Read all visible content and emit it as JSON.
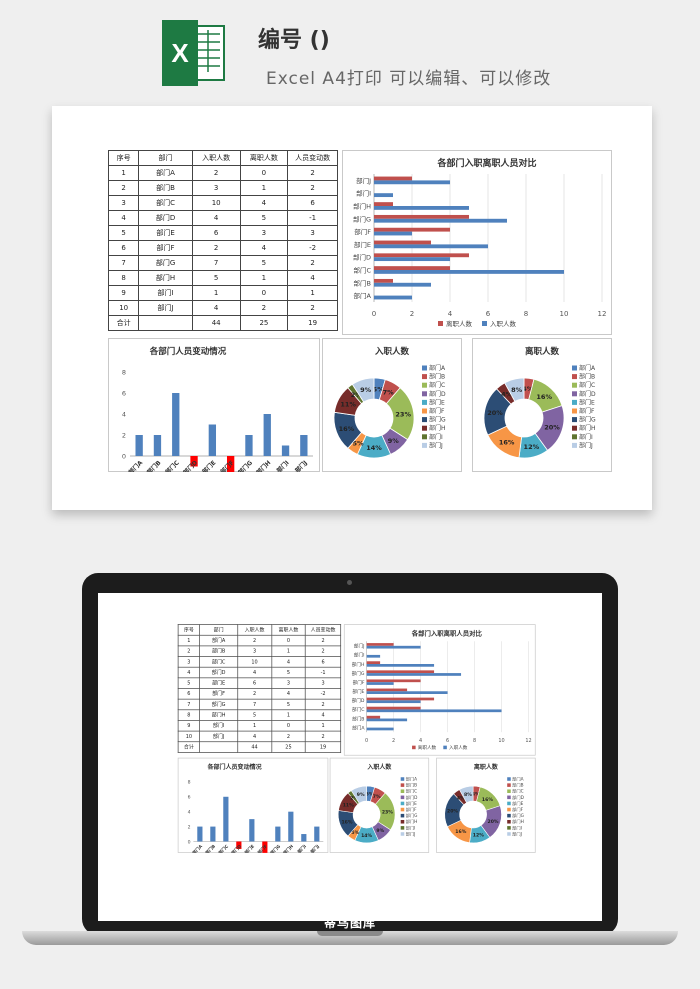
{
  "header": {
    "title": "编号 ()",
    "subtitle": "Excel A4打印 可以编辑、可以修改"
  },
  "table": {
    "headers": [
      "序号",
      "部门",
      "入职人数",
      "离职人数",
      "人员变动数"
    ],
    "rows": [
      [
        "1",
        "部门A",
        "2",
        "0",
        "2"
      ],
      [
        "2",
        "部门B",
        "3",
        "1",
        "2"
      ],
      [
        "3",
        "部门C",
        "10",
        "4",
        "6"
      ],
      [
        "4",
        "部门D",
        "4",
        "5",
        "-1"
      ],
      [
        "5",
        "部门E",
        "6",
        "3",
        "3"
      ],
      [
        "6",
        "部门F",
        "2",
        "4",
        "-2"
      ],
      [
        "7",
        "部门G",
        "7",
        "5",
        "2"
      ],
      [
        "8",
        "部门H",
        "5",
        "1",
        "4"
      ],
      [
        "9",
        "部门I",
        "1",
        "0",
        "1"
      ],
      [
        "10",
        "部门J",
        "4",
        "2",
        "2"
      ]
    ],
    "total": [
      "合计",
      "",
      "44",
      "25",
      "19"
    ]
  },
  "colors": {
    "entry": "#4f81bd",
    "leave": "#c0504d",
    "negative": "#ff0000",
    "pie": [
      "#4f81bd",
      "#c0504d",
      "#9bbb59",
      "#8064a2",
      "#4bacc6",
      "#f79646",
      "#2c4d75",
      "#772c2a",
      "#5f7530",
      "#b9cde5"
    ]
  },
  "brand": "蒂鸟图库",
  "chart_data": [
    {
      "type": "bar",
      "orientation": "horizontal",
      "title": "各部门入职离职人员对比",
      "categories": [
        "部门A",
        "部门B",
        "部门C",
        "部门D",
        "部门E",
        "部门F",
        "部门G",
        "部门H",
        "部门I",
        "部门J"
      ],
      "series": [
        {
          "name": "离职人数",
          "values": [
            0,
            1,
            4,
            5,
            3,
            4,
            5,
            1,
            0,
            2
          ]
        },
        {
          "name": "入职人数",
          "values": [
            2,
            3,
            10,
            4,
            6,
            2,
            7,
            5,
            1,
            4
          ]
        }
      ],
      "xlim": [
        0,
        12
      ],
      "xticks": [
        "0",
        "2",
        "4",
        "6",
        "8",
        "10",
        "12"
      ],
      "legend": "bottom",
      "grid": true
    },
    {
      "type": "bar",
      "title": "各部门人员变动情况",
      "categories": [
        "部门A",
        "部门B",
        "部门C",
        "部门D",
        "部门E",
        "部门F",
        "部门G",
        "部门H",
        "部门I",
        "部门J"
      ],
      "values": [
        2,
        2,
        6,
        -1,
        3,
        -2,
        2,
        4,
        1,
        2
      ],
      "ylim": [
        -2,
        8
      ],
      "yticks": [
        "-2",
        "0",
        "2",
        "4",
        "6",
        "8"
      ]
    },
    {
      "type": "pie",
      "title": "入职人数",
      "labels": [
        "部门A",
        "部门B",
        "部门C",
        "部门D",
        "部门E",
        "部门F",
        "部门G",
        "部门H",
        "部门I",
        "部门J"
      ],
      "values": [
        2,
        3,
        10,
        4,
        6,
        2,
        7,
        5,
        1,
        4
      ],
      "percent_labels": [
        "5%",
        "7%",
        "23%",
        "9%",
        "14%",
        "5%",
        "16%",
        "11%",
        "2%",
        "9%"
      ],
      "legend": "right"
    },
    {
      "type": "pie",
      "title": "离职人数",
      "labels": [
        "部门A",
        "部门B",
        "部门C",
        "部门D",
        "部门E",
        "部门F",
        "部门G",
        "部门H",
        "部门I",
        "部门J"
      ],
      "values": [
        0,
        1,
        4,
        5,
        3,
        4,
        5,
        1,
        0,
        2
      ],
      "percent_labels": [
        "",
        "4%",
        "16%",
        "20%",
        "12%",
        "16%",
        "20%",
        "4%",
        "",
        "8%"
      ],
      "legend": "right"
    }
  ]
}
